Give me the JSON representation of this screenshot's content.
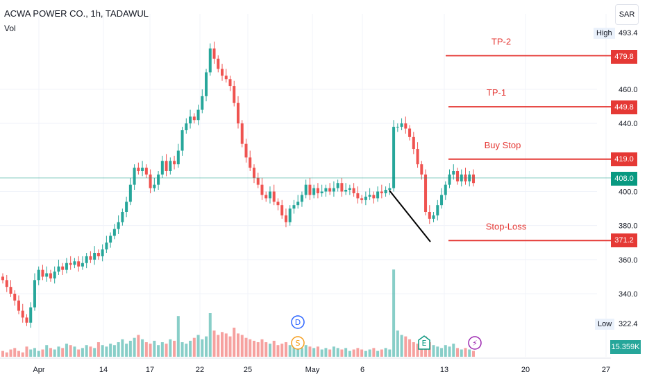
{
  "header": {
    "title": "ACWA POWER CO., 1h, TADAWUL",
    "volume_label": "Vol",
    "currency": "SAR"
  },
  "colors": {
    "up": "#26a69a",
    "down": "#ef5350",
    "level": "#e53935",
    "current": "#089981",
    "grid": "#f0f3fa",
    "event_d": "#2962ff",
    "event_s": "#f59c1a",
    "event_e": "#089981",
    "event_bolt": "#9c27b0"
  },
  "chart_data": {
    "type": "candlestick",
    "title": "ACWA POWER CO., 1h, TADAWUL",
    "ylim": [
      316,
      500
    ],
    "y_ticks": [
      "460.0",
      "440.0",
      "400.0",
      "380.0",
      "360.0",
      "340.0"
    ],
    "x_ticks": [
      "Apr",
      "14",
      "17",
      "22",
      "25",
      "May",
      "6",
      "13",
      "20",
      "27"
    ],
    "price_series": [
      348,
      344,
      340,
      336,
      330,
      326,
      323,
      332,
      348,
      354,
      350,
      352,
      349,
      353,
      356,
      354,
      358,
      357,
      359,
      356,
      358,
      362,
      360,
      364,
      362,
      366,
      370,
      374,
      378,
      382,
      388,
      394,
      404,
      414,
      412,
      414,
      410,
      402,
      404,
      410,
      418,
      412,
      418,
      416,
      424,
      436,
      440,
      444,
      442,
      448,
      456,
      470,
      484,
      478,
      472,
      468,
      466,
      462,
      452,
      440,
      428,
      420,
      414,
      408,
      404,
      398,
      396,
      400,
      394,
      392,
      386,
      382,
      390,
      392,
      394,
      398,
      404,
      398,
      402,
      399,
      400,
      402,
      400,
      402,
      405,
      400,
      401,
      402,
      399,
      396,
      395,
      397,
      398,
      396,
      400,
      399,
      401,
      402,
      438,
      438,
      440,
      437,
      432,
      425,
      416,
      410,
      388,
      384,
      386,
      392,
      398,
      404,
      410,
      412,
      406,
      410,
      406,
      410,
      405
    ],
    "volume_series": [
      4,
      3,
      5,
      6,
      4,
      3,
      7,
      5,
      6,
      4,
      5,
      8,
      6,
      5,
      7,
      6,
      9,
      8,
      7,
      5,
      6,
      8,
      7,
      6,
      10,
      8,
      7,
      9,
      8,
      10,
      12,
      9,
      11,
      13,
      15,
      12,
      10,
      9,
      11,
      8,
      10,
      9,
      12,
      11,
      28,
      10,
      9,
      11,
      13,
      15,
      12,
      14,
      30,
      18,
      15,
      17,
      16,
      14,
      20,
      16,
      15,
      13,
      12,
      11,
      10,
      12,
      10,
      9,
      11,
      8,
      9,
      10,
      8,
      9,
      7,
      6,
      8,
      7,
      6,
      7,
      5,
      6,
      5,
      7,
      6,
      5,
      6,
      4,
      5,
      6,
      5,
      4,
      5,
      6,
      4,
      5,
      6,
      5,
      60,
      18,
      15,
      14,
      12,
      10,
      9,
      8,
      14,
      10,
      8,
      7,
      6,
      8,
      7,
      9,
      6,
      5,
      6,
      5,
      4
    ],
    "high": 493.4,
    "low": 322.4,
    "last_price": 408.0,
    "last_volume": "15.359K",
    "levels": [
      {
        "label": "TP-2",
        "value": 479.8,
        "tag": "479.8"
      },
      {
        "label": "TP-1",
        "value": 449.8,
        "tag": "449.8"
      },
      {
        "label": "Buy Stop",
        "value": 419.0,
        "tag": "419.0"
      },
      {
        "label": "Stop-Loss",
        "value": 371.2,
        "tag": "371.2"
      }
    ],
    "high_label": "High",
    "high_value": "493.4",
    "low_label": "Low",
    "low_value": "322.4",
    "current_tag": "408.0",
    "events": [
      "D",
      "S",
      "E",
      "⚡"
    ]
  }
}
